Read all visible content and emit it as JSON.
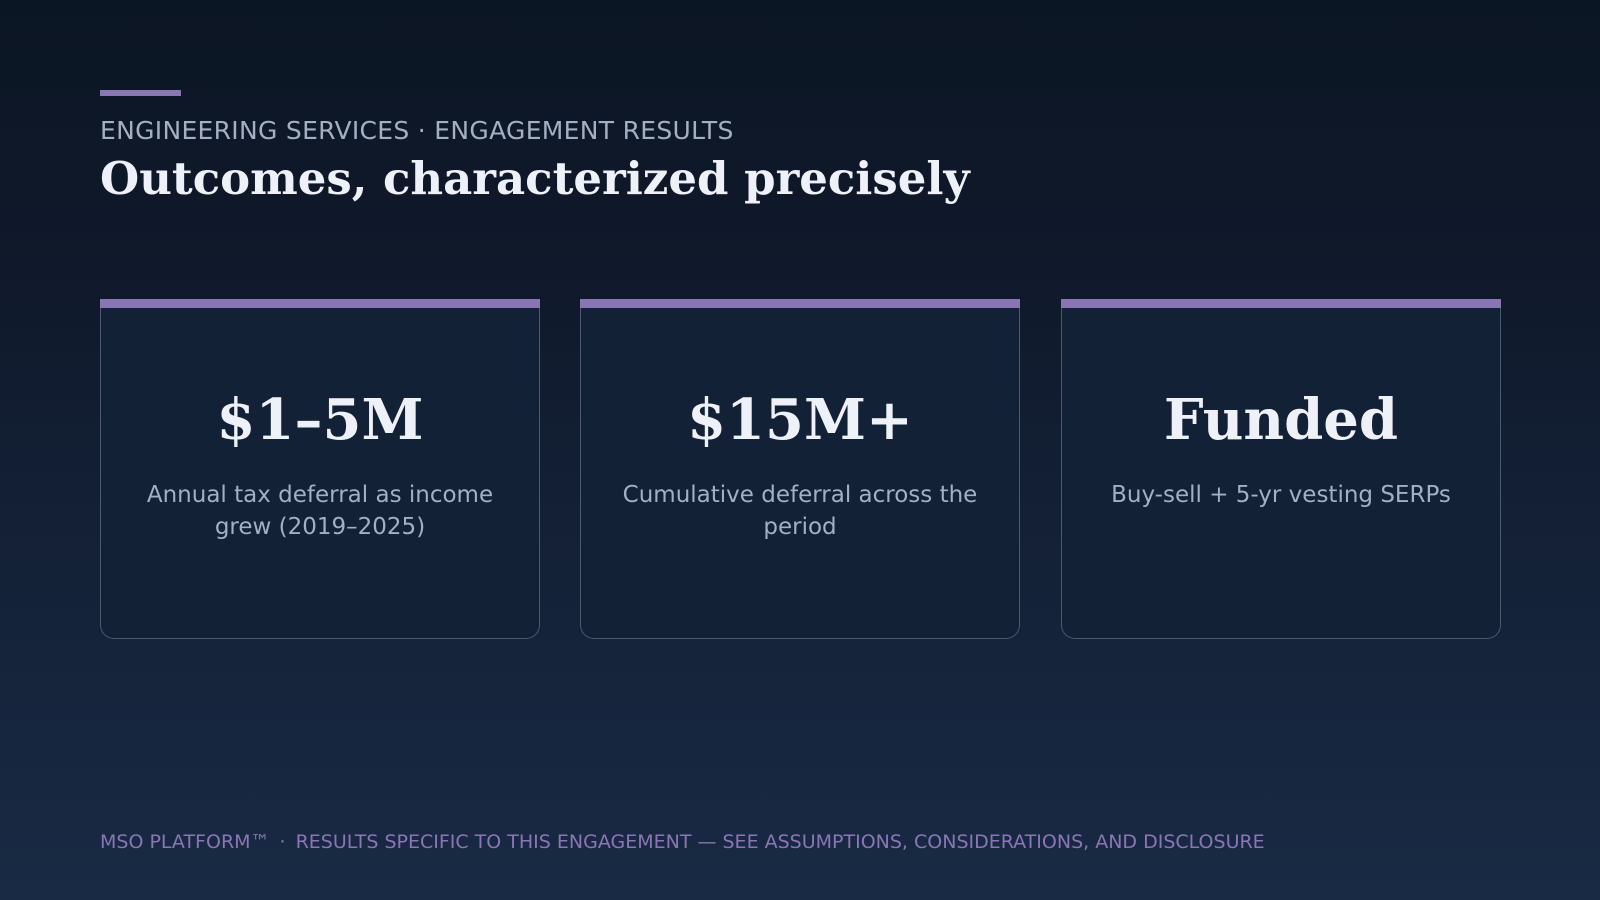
{
  "header": {
    "eyebrow": "ENGINEERING SERVICES · ENGAGEMENT RESULTS",
    "title": "Outcomes, characterized precisely"
  },
  "cards": [
    {
      "value": "$1–5M",
      "description": "Annual tax deferral as income grew (2019–2025)"
    },
    {
      "value": "$15M+",
      "description": "Cumulative deferral across the period"
    },
    {
      "value": "Funded",
      "description": "Buy-sell + 5-yr vesting SERPs"
    }
  ],
  "footer": {
    "brand": "MSO PLATFORM™",
    "separator": "·",
    "disclaimer": "RESULTS SPECIFIC TO THIS ENGAGEMENT — SEE ASSUMPTIONS, CONSIDERATIONS, AND DISCLOSURE"
  },
  "colors": {
    "accent": "#8a76b4",
    "background_top": "#0b1624",
    "background_bottom": "#192a44",
    "card_background": "#132136",
    "card_border": "#4a5870",
    "heading_text": "#eef1f7",
    "muted_text": "#a3afc2"
  }
}
